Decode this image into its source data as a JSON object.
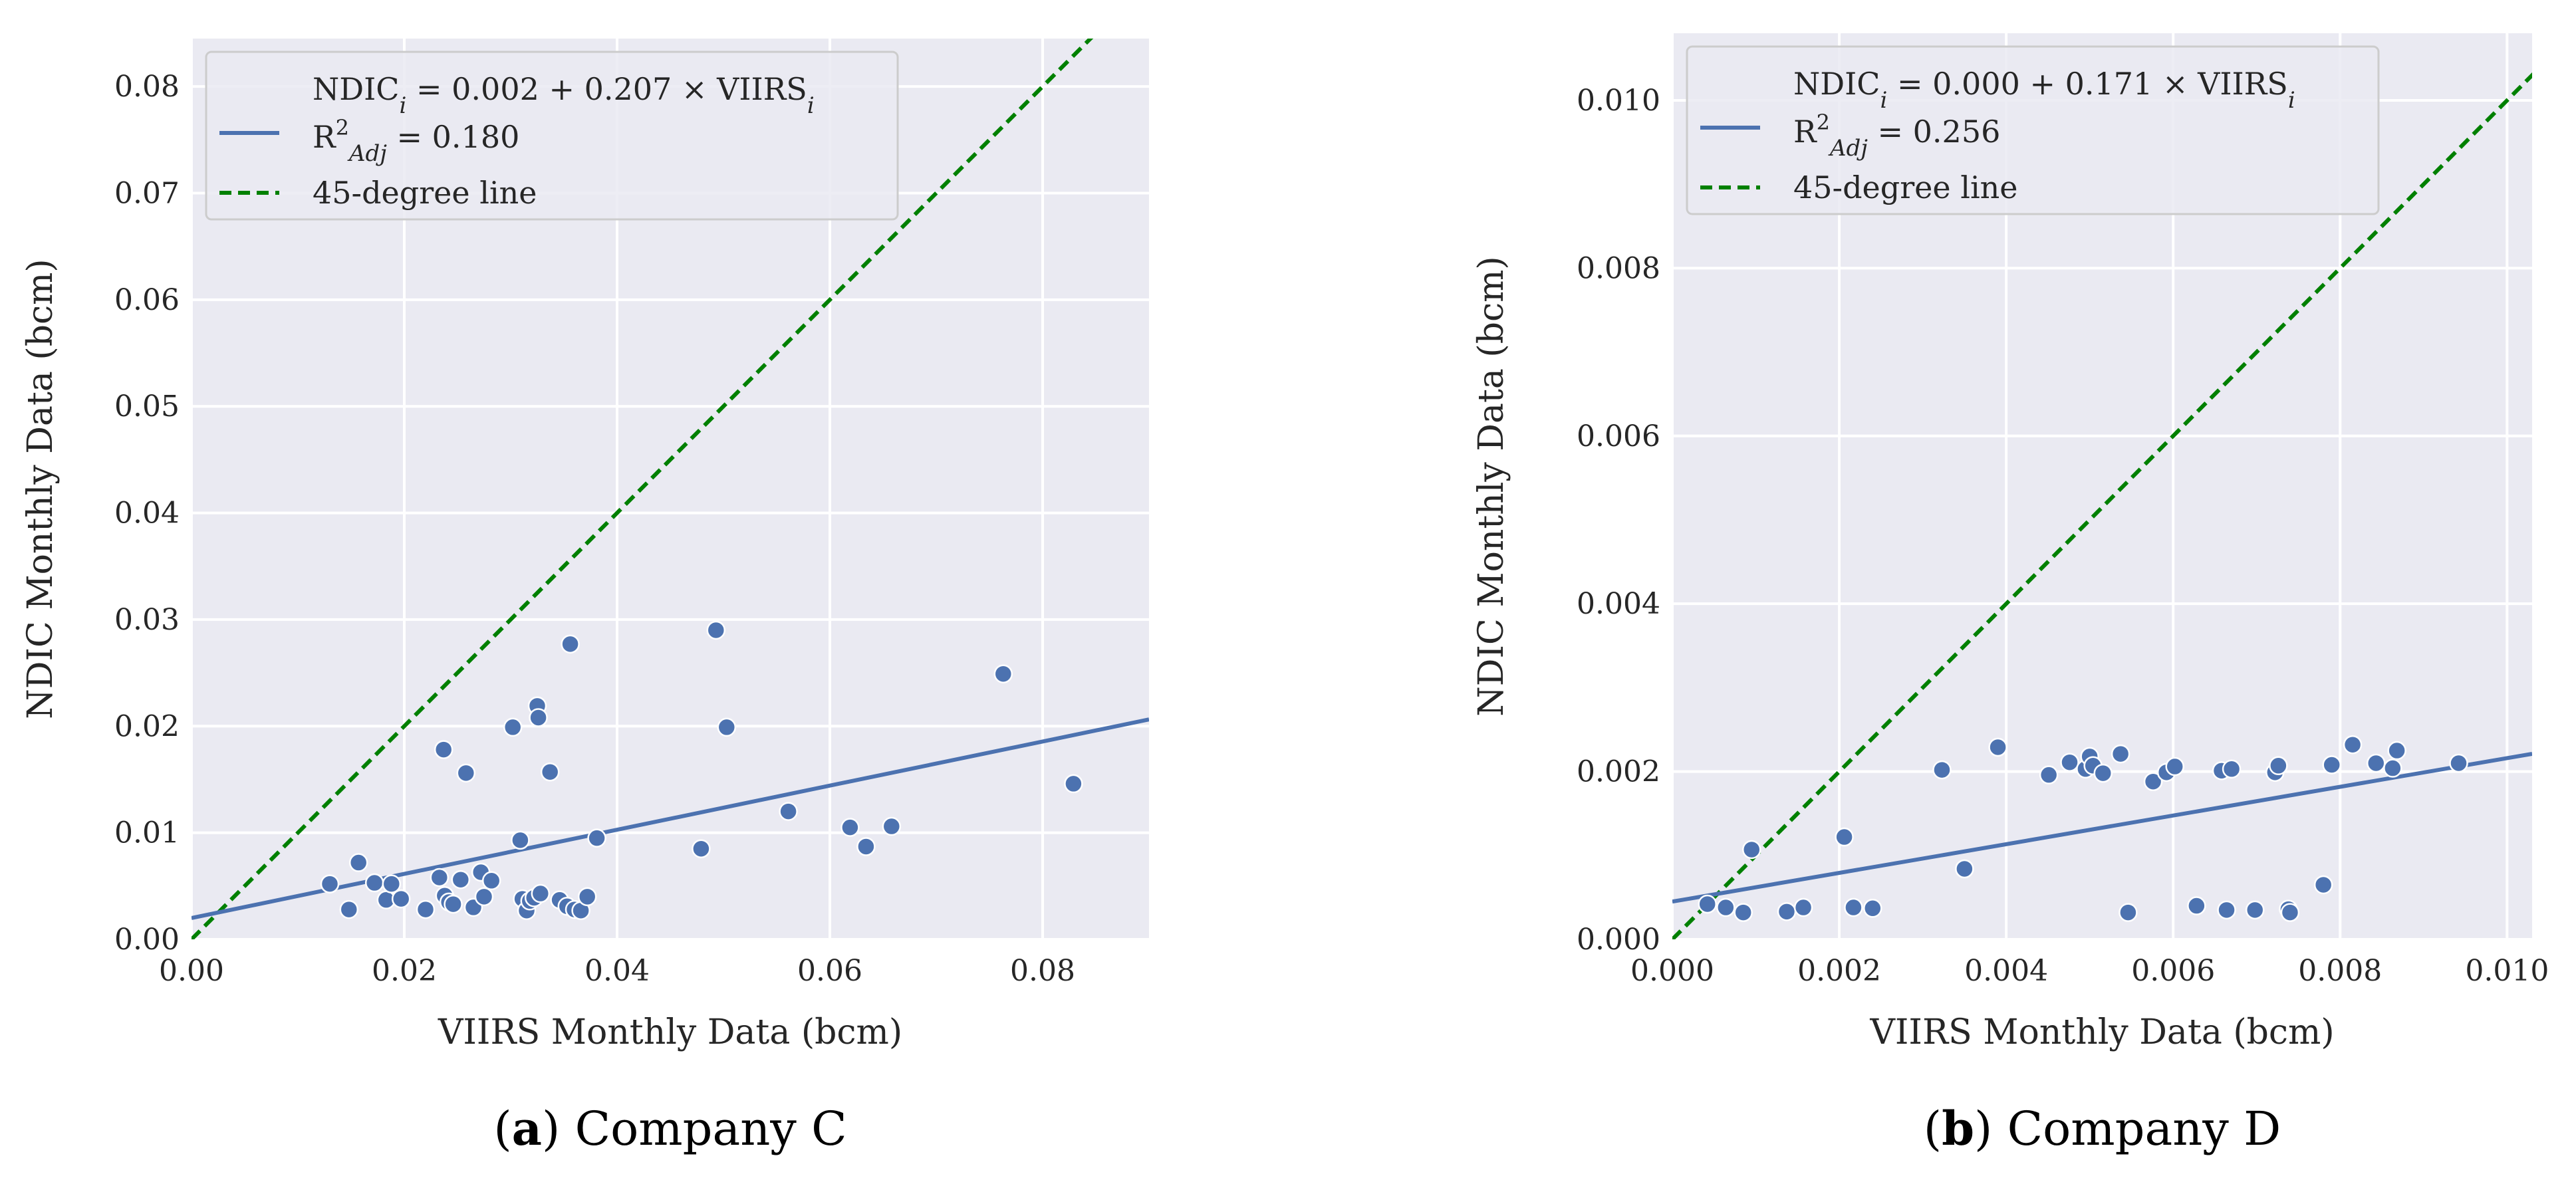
{
  "chart_data": [
    {
      "type": "scatter",
      "id": "a",
      "caption_label": "a",
      "caption_title": "Company C",
      "xlabel": "VIIRS Monthly Data (bcm)",
      "ylabel": "NDIC Monthly Data (bcm)",
      "xlim": [
        0,
        0.09
      ],
      "ylim": [
        0,
        0.0845
      ],
      "xticks": [
        0,
        0.02,
        0.04,
        0.06,
        0.08
      ],
      "xtick_labels": [
        "0.00",
        "0.02",
        "0.04",
        "0.06",
        "0.08"
      ],
      "yticks": [
        0,
        0.01,
        0.02,
        0.03,
        0.04,
        0.05,
        0.06,
        0.07,
        0.08
      ],
      "ytick_labels": [
        "0.00",
        "0.01",
        "0.02",
        "0.03",
        "0.04",
        "0.05",
        "0.06",
        "0.07",
        "0.08"
      ],
      "legend": {
        "position": "top-left",
        "fit_text_1": "NDIC<sub>i</sub> = 0.002 + 0.207 × VIIRS<sub>i</sub>",
        "fit_text_2": "R²<sub>Adj</sub> = 0.180",
        "ref_text": "45-degree line"
      },
      "fit": {
        "intercept": 0.002,
        "slope": 0.207,
        "r2_adj": 0.18
      },
      "colors": {
        "points": "#4c72b0",
        "fit": "#4c72b0",
        "ref": "#008000",
        "bg": "#eaeaf2"
      },
      "points": [
        [
          0.013,
          0.0052
        ],
        [
          0.0148,
          0.0028
        ],
        [
          0.0157,
          0.0072
        ],
        [
          0.0172,
          0.0053
        ],
        [
          0.0183,
          0.0037
        ],
        [
          0.0188,
          0.0052
        ],
        [
          0.0197,
          0.0038
        ],
        [
          0.022,
          0.0028
        ],
        [
          0.0233,
          0.0058
        ],
        [
          0.0237,
          0.0178
        ],
        [
          0.0238,
          0.0041
        ],
        [
          0.0242,
          0.0035
        ],
        [
          0.0246,
          0.0033
        ],
        [
          0.0253,
          0.0056
        ],
        [
          0.0258,
          0.0156
        ],
        [
          0.0265,
          0.003
        ],
        [
          0.0272,
          0.0063
        ],
        [
          0.0275,
          0.004
        ],
        [
          0.0282,
          0.0055
        ],
        [
          0.0302,
          0.0199
        ],
        [
          0.0309,
          0.0093
        ],
        [
          0.0311,
          0.0038
        ],
        [
          0.0315,
          0.0027
        ],
        [
          0.0318,
          0.0036
        ],
        [
          0.0322,
          0.0039
        ],
        [
          0.0325,
          0.0219
        ],
        [
          0.0326,
          0.0208
        ],
        [
          0.0328,
          0.0043
        ],
        [
          0.0337,
          0.0157
        ],
        [
          0.0346,
          0.0037
        ],
        [
          0.0353,
          0.0031
        ],
        [
          0.0356,
          0.0277
        ],
        [
          0.036,
          0.0028
        ],
        [
          0.0366,
          0.0027
        ],
        [
          0.0372,
          0.004
        ],
        [
          0.0381,
          0.0095
        ],
        [
          0.0479,
          0.0085
        ],
        [
          0.0493,
          0.029
        ],
        [
          0.0503,
          0.0199
        ],
        [
          0.0561,
          0.012
        ],
        [
          0.0619,
          0.0105
        ],
        [
          0.0634,
          0.0087
        ],
        [
          0.0658,
          0.0106
        ],
        [
          0.0763,
          0.0249
        ],
        [
          0.0829,
          0.0146
        ]
      ]
    },
    {
      "type": "scatter",
      "id": "b",
      "caption_label": "b",
      "caption_title": "Company D",
      "xlabel": "VIIRS Monthly Data (bcm)",
      "ylabel": "NDIC Monthly Data (bcm)",
      "xlim": [
        0,
        0.0103
      ],
      "ylim": [
        0,
        0.0108
      ],
      "xticks": [
        0,
        0.002,
        0.004,
        0.006,
        0.008,
        0.01
      ],
      "xtick_labels": [
        "0.000",
        "0.002",
        "0.004",
        "0.006",
        "0.008",
        "0.010"
      ],
      "yticks": [
        0,
        0.002,
        0.004,
        0.006,
        0.008,
        0.01
      ],
      "ytick_labels": [
        "0.000",
        "0.002",
        "0.004",
        "0.006",
        "0.008",
        "0.010"
      ],
      "legend": {
        "position": "top-left",
        "fit_text_1": "NDIC<sub>i</sub> = 0.000 + 0.171 × VIIRS<sub>i</sub>",
        "fit_text_2": "R²<sub>Adj</sub> = 0.256",
        "ref_text": "45-degree line"
      },
      "fit": {
        "intercept": 0.00045,
        "slope": 0.171,
        "r2_adj": 0.256
      },
      "colors": {
        "points": "#4c72b0",
        "fit": "#4c72b0",
        "ref": "#008000",
        "bg": "#eaeaf2"
      },
      "points": [
        [
          0.00042,
          0.00042
        ],
        [
          0.00064,
          0.00038
        ],
        [
          0.00085,
          0.00032
        ],
        [
          0.00095,
          0.00107
        ],
        [
          0.00137,
          0.00033
        ],
        [
          0.00157,
          0.00038
        ],
        [
          0.00206,
          0.00122
        ],
        [
          0.00217,
          0.00038
        ],
        [
          0.0024,
          0.00037
        ],
        [
          0.00323,
          0.00202
        ],
        [
          0.0035,
          0.00084
        ],
        [
          0.0039,
          0.00229
        ],
        [
          0.00451,
          0.00196
        ],
        [
          0.00476,
          0.00211
        ],
        [
          0.00495,
          0.00203
        ],
        [
          0.005,
          0.00218
        ],
        [
          0.00504,
          0.00207
        ],
        [
          0.00516,
          0.00198
        ],
        [
          0.00537,
          0.00221
        ],
        [
          0.00546,
          0.00032
        ],
        [
          0.00576,
          0.00188
        ],
        [
          0.00592,
          0.00199
        ],
        [
          0.00602,
          0.00206
        ],
        [
          0.00628,
          0.0004
        ],
        [
          0.00658,
          0.00201
        ],
        [
          0.00664,
          0.00035
        ],
        [
          0.0067,
          0.00203
        ],
        [
          0.00698,
          0.00035
        ],
        [
          0.00722,
          0.00199
        ],
        [
          0.00726,
          0.00207
        ],
        [
          0.00738,
          0.00036
        ],
        [
          0.0074,
          0.00032
        ],
        [
          0.0078,
          0.00065
        ],
        [
          0.0079,
          0.00208
        ],
        [
          0.00815,
          0.00232
        ],
        [
          0.00843,
          0.0021
        ],
        [
          0.00863,
          0.00204
        ],
        [
          0.00868,
          0.00225
        ],
        [
          0.00942,
          0.0021
        ]
      ]
    }
  ]
}
